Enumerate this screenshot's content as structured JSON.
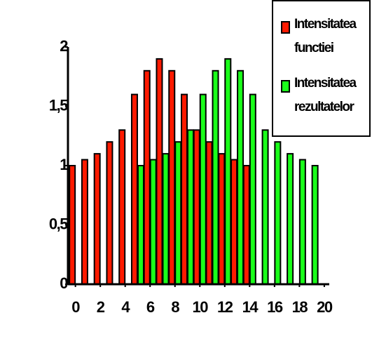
{
  "chart_data": {
    "type": "bar",
    "x": [
      0,
      1,
      2,
      3,
      4,
      5,
      6,
      7,
      8,
      9,
      10,
      11,
      12,
      13,
      14,
      15,
      16,
      17,
      18,
      19
    ],
    "series": [
      {
        "name": "Intensitatea functiei",
        "color": "#ff1a00",
        "values": [
          1,
          1.05,
          1.1,
          1.2,
          1.3,
          1.6,
          1.8,
          1.9,
          1.8,
          1.6,
          1.3,
          1.2,
          1.1,
          1.05,
          1,
          0,
          0,
          0,
          0,
          0
        ]
      },
      {
        "name": "Intensitatea rezultatelor",
        "color": "#1aff1a",
        "values": [
          0,
          0,
          0,
          0,
          0,
          1,
          1.05,
          1.1,
          1.2,
          1.3,
          1.6,
          1.8,
          1.9,
          1.8,
          1.6,
          1.3,
          1.2,
          1.1,
          1.05,
          1
        ]
      }
    ],
    "xlim": [
      -0.6,
      20.4
    ],
    "xticks": [
      0,
      2,
      4,
      6,
      8,
      10,
      12,
      14,
      16,
      18,
      20
    ],
    "ylim": [
      0,
      2
    ],
    "yticks": [
      0,
      {
        "value": 0.5,
        "label": "0,5"
      },
      1,
      {
        "value": 1.5,
        "label": "1,5"
      },
      2
    ],
    "legend": "top-right"
  }
}
